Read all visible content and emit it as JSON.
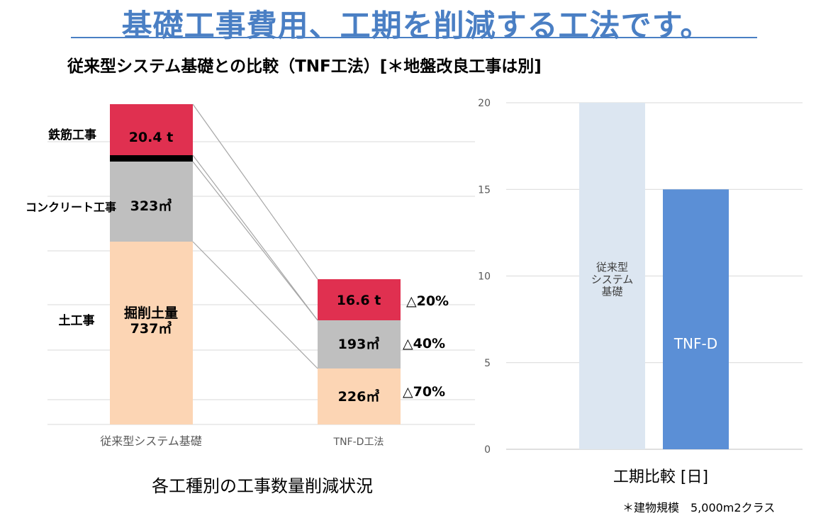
{
  "header": {
    "title": "基礎工事費用、工期を削減する工法です。",
    "subtitle": "従来型システム基礎との比較（TNF工法）[＊地盤改良工事は別]"
  },
  "colors": {
    "title": "#4a7fc4",
    "rebar": "#e03050",
    "concrete": "#bfbfbf",
    "earth": "#fcd5b4",
    "separator": "#000000",
    "conventional_bar": "#dce6f1",
    "tnf_bar": "#5b8fd6"
  },
  "chart_data": [
    {
      "type": "bar",
      "stacked": true,
      "caption": "各工種別の工事数量削減状況",
      "categories": [
        "従来型システム基礎",
        "TNF-D工法"
      ],
      "row_labels": [
        "鉄筋工事",
        "コンクリート工事",
        "土工事"
      ],
      "series": [
        {
          "key": "earth",
          "name": "土工事",
          "values": [
            737,
            226
          ],
          "labels": [
            "掘削土量\n737㎥",
            "226㎥"
          ],
          "change": "△70%"
        },
        {
          "key": "concrete",
          "name": "コンクリート工事",
          "values": [
            323,
            193
          ],
          "labels": [
            "323㎥",
            "193㎥"
          ],
          "change": "△40%"
        },
        {
          "key": "rebar",
          "name": "鉄筋工事",
          "values": [
            20.4,
            16.6
          ],
          "labels": [
            "20.4 t",
            "16.6 t"
          ],
          "change": "△20%"
        }
      ],
      "grid": true
    },
    {
      "type": "bar",
      "caption": "工期比較 [日]",
      "categories": [
        "従来型システム基礎",
        "TNF-D"
      ],
      "values": [
        20,
        15
      ],
      "bar_labels": [
        "従来型\nシステム\n基礎",
        "TNF-D"
      ],
      "ylim": [
        0,
        20
      ],
      "yticks": [
        0,
        5,
        10,
        15,
        20
      ],
      "grid": true
    }
  ],
  "footnote": "＊建物規模　5,000m2クラス"
}
